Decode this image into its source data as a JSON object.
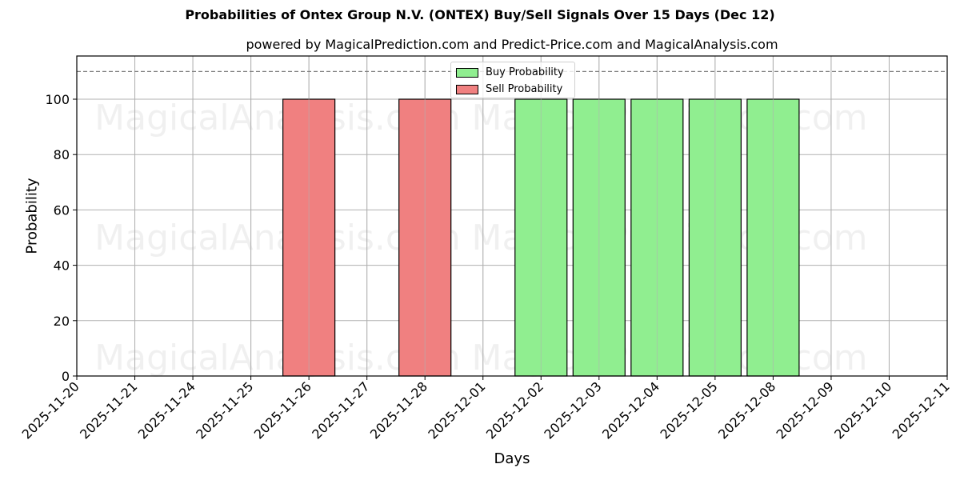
{
  "header": {
    "title": "Probabilities of Ontex Group N.V. (ONTEX) Buy/Sell Signals Over 15 Days (Dec 12)",
    "subtitle": "powered by MagicalPrediction.com and Predict-Price.com and MagicalAnalysis.com"
  },
  "axes": {
    "xlabel": "Days",
    "ylabel": "Probability"
  },
  "legend": {
    "buy_label": "Buy Probability",
    "sell_label": "Sell Probability"
  },
  "colors": {
    "buy": "#90ee90",
    "sell": "#f08080",
    "grid": "#b0b0b0",
    "threshold": "#808080"
  },
  "watermarks": [
    "MagicalAnalysis.com",
    "MagicalPrediction.com"
  ],
  "chart_data": {
    "type": "bar",
    "title": "Probabilities of Ontex Group N.V. (ONTEX) Buy/Sell Signals Over 15 Days (Dec 12)",
    "subtitle": "powered by MagicalPrediction.com and Predict-Price.com and MagicalAnalysis.com",
    "xlabel": "Days",
    "ylabel": "Probability",
    "categories": [
      "2025-11-20",
      "2025-11-21",
      "2025-11-24",
      "2025-11-25",
      "2025-11-26",
      "2025-11-27",
      "2025-11-28",
      "2025-12-01",
      "2025-12-02",
      "2025-12-03",
      "2025-12-04",
      "2025-12-05",
      "2025-12-08",
      "2025-12-09",
      "2025-12-10",
      "2025-12-11"
    ],
    "series": [
      {
        "name": "Buy Probability",
        "color": "#90ee90",
        "values": [
          0,
          0,
          0,
          0,
          0,
          0,
          0,
          0,
          100,
          100,
          100,
          100,
          100,
          0,
          0,
          0
        ]
      },
      {
        "name": "Sell Probability",
        "color": "#f08080",
        "values": [
          0,
          0,
          0,
          0,
          100,
          0,
          100,
          0,
          0,
          0,
          0,
          0,
          0,
          0,
          0,
          0
        ]
      }
    ],
    "yticks": [
      0,
      20,
      40,
      60,
      80,
      100
    ],
    "ylim": [
      0,
      115
    ],
    "threshold_line": 110,
    "grid": true,
    "legend_position": "upper center"
  }
}
